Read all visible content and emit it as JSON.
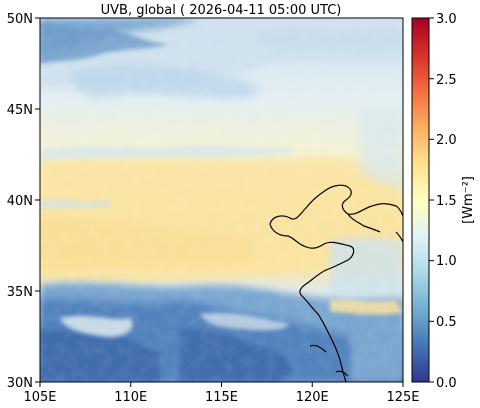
{
  "title": "UVB, global ( 2026-04-11 05:00 UTC)",
  "map": {
    "lon_ticks": [
      "105E",
      "110E",
      "115E",
      "120E",
      "125E"
    ],
    "lat_ticks": [
      "30N",
      "35N",
      "40N",
      "45N",
      "50N"
    ],
    "lon_range": [
      105,
      125
    ],
    "lat_range": [
      30,
      50
    ]
  },
  "colorbar": {
    "label": "[Wm⁻²]",
    "ticks": [
      "0.0",
      "0.5",
      "1.0",
      "1.5",
      "2.0",
      "2.5",
      "3.0"
    ],
    "range": [
      0,
      3
    ],
    "colormap": "RdYlBu_r",
    "colors": [
      "#313695",
      "#4575b4",
      "#74add1",
      "#abd9e9",
      "#e0f3f8",
      "#ffffbf",
      "#fee090",
      "#fdae61",
      "#f46d43",
      "#d73027",
      "#a50026"
    ]
  },
  "colors": {
    "low_cloud": "#4a78b5",
    "mid": "#dcecf2",
    "clear_high": "#fbe7a3",
    "coastline": "#000000"
  }
}
